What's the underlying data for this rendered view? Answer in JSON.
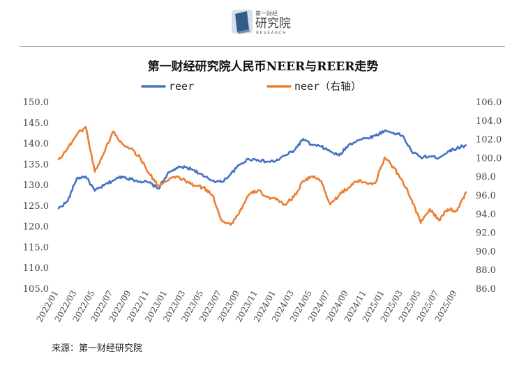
{
  "logo": {
    "cn_top": "第一财经",
    "cn_main": "研究院",
    "en": "RESEARCH"
  },
  "colors": {
    "reer": "#4472C4",
    "neer": "#ED7D31",
    "axis_text": "#444444",
    "rule": "#9a9a9a"
  },
  "source": "来源：第一财经研究院",
  "chart_data": {
    "type": "line",
    "title": "第一财经研究院人民币NEER与REER走势",
    "legend": [
      "reer",
      "neer（右轴）"
    ],
    "legend_position": "top",
    "x": [
      "2022/01",
      "2022/02",
      "2022/03",
      "2022/04",
      "2022/05",
      "2022/06",
      "2022/07",
      "2022/08",
      "2022/09",
      "2022/10",
      "2022/11",
      "2022/12",
      "2023/01",
      "2023/02",
      "2023/03",
      "2023/04",
      "2023/05",
      "2023/06",
      "2023/07",
      "2023/08",
      "2023/09",
      "2023/10",
      "2023/11",
      "2023/12",
      "2024/01",
      "2024/02",
      "2024/03",
      "2024/04",
      "2024/05",
      "2024/06",
      "2024/07",
      "2024/08",
      "2024/09",
      "2024/10",
      "2024/11",
      "2024/12",
      "2025/01",
      "2025/02",
      "2025/03",
      "2025/04",
      "2025/05",
      "2025/06",
      "2025/07",
      "2025/08",
      "2025/09",
      "2025/10"
    ],
    "x_tick_labels": [
      "2022/01",
      "2022/03",
      "2022/05",
      "2022/07",
      "2022/09",
      "2022/11",
      "2023/01",
      "2023/03",
      "2023/05",
      "2023/07",
      "2023/09",
      "2023/11",
      "2024/01",
      "2024/03",
      "2024/05",
      "2024/07",
      "2024/09",
      "2024/11",
      "2025/01",
      "2025/03",
      "2025/05",
      "2025/07",
      "2025/09"
    ],
    "y_left": {
      "range": [
        105,
        150
      ],
      "ticks": [
        "150.0",
        "145.0",
        "140.0",
        "135.0",
        "130.0",
        "125.0",
        "120.0",
        "115.0",
        "110.0",
        "105.0"
      ]
    },
    "y_right": {
      "range": [
        86,
        106
      ],
      "ticks": [
        "106.0",
        "104.0",
        "102.0",
        "100.0",
        "98.0",
        "96.0",
        "94.0",
        "92.0",
        "90.0",
        "88.0",
        "86.0"
      ]
    },
    "series": [
      {
        "name": "reer",
        "axis": "left",
        "values": [
          124.3,
          126.0,
          131.5,
          132.0,
          128.5,
          129.8,
          131.0,
          132.0,
          131.3,
          130.8,
          130.5,
          129.0,
          132.5,
          134.0,
          134.2,
          133.5,
          132.0,
          131.0,
          130.6,
          132.5,
          134.8,
          136.2,
          136.0,
          135.5,
          135.7,
          137.0,
          138.2,
          141.0,
          139.5,
          139.2,
          138.0,
          137.0,
          139.5,
          140.7,
          141.2,
          141.8,
          143.0,
          142.5,
          141.8,
          138.0,
          136.6,
          136.8,
          136.5,
          138.0,
          138.8,
          139.5
        ]
      },
      {
        "name": "neer（右轴）",
        "axis": "right",
        "values": [
          99.8,
          101.0,
          102.5,
          103.3,
          98.5,
          100.5,
          102.8,
          101.5,
          101.0,
          100.0,
          98.3,
          97.0,
          97.5,
          98.0,
          97.5,
          97.0,
          96.8,
          96.0,
          93.3,
          92.8,
          94.2,
          96.0,
          96.5,
          95.8,
          95.5,
          95.0,
          95.8,
          97.5,
          98.0,
          97.5,
          95.0,
          96.0,
          96.8,
          97.5,
          97.3,
          97.3,
          100.0,
          99.0,
          97.5,
          95.5,
          93.0,
          94.5,
          93.3,
          94.5,
          94.3,
          96.3
        ]
      }
    ]
  }
}
